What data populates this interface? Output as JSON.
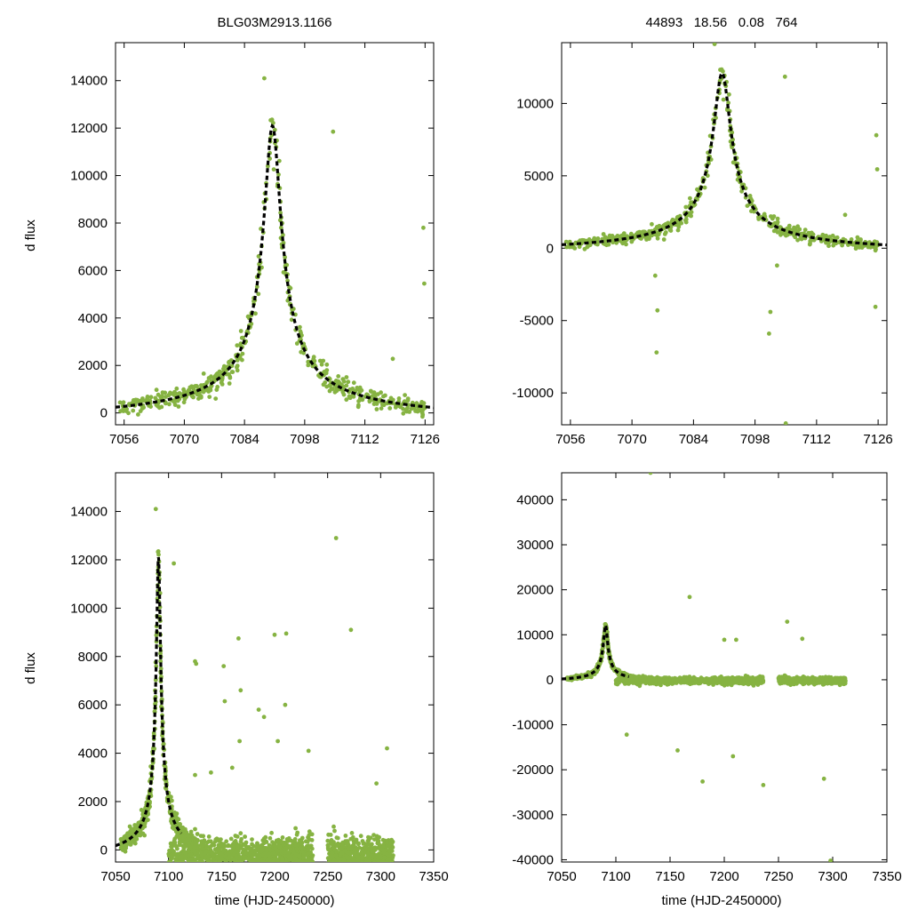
{
  "header": {
    "star_id": "BLG03M2913.1166",
    "params": "44893   18.56   0.08   764"
  },
  "chart_data": [
    {
      "id": "top-left",
      "type": "scatter",
      "title": "",
      "xlabel": "",
      "ylabel": "d flux",
      "xlim": [
        7054,
        7128
      ],
      "ylim": [
        -500,
        15600
      ],
      "xticks": [
        7056,
        7070,
        7084,
        7098,
        7112,
        7126
      ],
      "yticks": [
        0,
        2000,
        4000,
        6000,
        8000,
        10000,
        12000,
        14000
      ],
      "series": [
        {
          "name": "photometry",
          "kind": "points",
          "color": "#86b342"
        },
        {
          "name": "model",
          "kind": "dashed-line",
          "color": "#000000",
          "model": {
            "t0": 7090.5,
            "tE": 7.5,
            "amp": 12500,
            "baseline": -400
          }
        }
      ],
      "outliers": [
        [
          7088.6,
          14100
        ],
        [
          7104.6,
          11850
        ],
        [
          7125.6,
          7800
        ],
        [
          7125.8,
          5450
        ],
        [
          7118.5,
          2280
        ]
      ]
    },
    {
      "id": "top-right",
      "type": "scatter",
      "title": "",
      "xlabel": "",
      "ylabel": "",
      "xlim": [
        7054,
        7128
      ],
      "ylim": [
        -12200,
        14200
      ],
      "xticks": [
        7056,
        7070,
        7084,
        7098,
        7112,
        7126
      ],
      "yticks": [
        -10000,
        -5000,
        0,
        5000,
        10000
      ],
      "series": [
        {
          "name": "photometry",
          "kind": "points",
          "color": "#86b342"
        },
        {
          "name": "model",
          "kind": "dashed-line",
          "color": "#000000",
          "model": {
            "t0": 7090.5,
            "tE": 7.5,
            "amp": 12500,
            "baseline": -400
          }
        }
      ],
      "outliers": [
        [
          7088.8,
          14100
        ],
        [
          7104.8,
          11850
        ],
        [
          7075.6,
          -7200
        ],
        [
          7075.8,
          -4300
        ],
        [
          7075.3,
          -1900
        ],
        [
          7101.5,
          -4400
        ],
        [
          7101.2,
          -5900
        ],
        [
          7103.0,
          -1200
        ],
        [
          7125.6,
          7800
        ],
        [
          7125.8,
          5450
        ],
        [
          7125.4,
          -4050
        ],
        [
          7105.0,
          -12100
        ],
        [
          7118.5,
          2300
        ]
      ]
    },
    {
      "id": "bottom-left",
      "type": "scatter",
      "title": "",
      "xlabel": "time (HJD-2450000)",
      "ylabel": "d flux",
      "xlim": [
        7050,
        7350
      ],
      "ylim": [
        -500,
        15600
      ],
      "xticks": [
        7050,
        7100,
        7150,
        7200,
        7250,
        7300,
        7350
      ],
      "yticks": [
        0,
        2000,
        4000,
        6000,
        8000,
        10000,
        12000,
        14000
      ],
      "series": [
        {
          "name": "photometry",
          "kind": "points",
          "color": "#86b342"
        },
        {
          "name": "model",
          "kind": "dashed-line",
          "color": "#000000",
          "model": {
            "t0": 7090.5,
            "tE": 7.5,
            "amp": 12500,
            "baseline": -400
          }
        }
      ],
      "outliers": [
        [
          7088,
          14100
        ],
        [
          7105,
          11850
        ],
        [
          7125,
          7800
        ],
        [
          7126,
          7700
        ],
        [
          7258,
          12900
        ],
        [
          7272,
          9100
        ],
        [
          7200,
          8900
        ],
        [
          7211,
          8950
        ],
        [
          7166,
          8750
        ],
        [
          7152,
          7600
        ],
        [
          7168,
          6600
        ],
        [
          7153,
          6150
        ],
        [
          7210,
          6000
        ],
        [
          7185,
          5800
        ],
        [
          7190,
          5500
        ],
        [
          7167,
          4500
        ],
        [
          7203,
          4500
        ],
        [
          7232,
          4100
        ],
        [
          7306,
          4200
        ],
        [
          7296,
          2750
        ],
        [
          7160,
          3400
        ],
        [
          7140,
          3200
        ],
        [
          7125,
          3100
        ]
      ]
    },
    {
      "id": "bottom-right",
      "type": "scatter",
      "title": "",
      "xlabel": "time (HJD-2450000)",
      "ylabel": "",
      "xlim": [
        7050,
        7350
      ],
      "ylim": [
        -40500,
        46000
      ],
      "xticks": [
        7050,
        7100,
        7150,
        7200,
        7250,
        7300,
        7350
      ],
      "yticks": [
        -40000,
        -30000,
        -20000,
        -10000,
        0,
        10000,
        20000,
        30000,
        40000
      ],
      "series": [
        {
          "name": "photometry",
          "kind": "points",
          "color": "#86b342"
        },
        {
          "name": "model",
          "kind": "dashed-line",
          "color": "#000000",
          "model": {
            "t0": 7090.5,
            "tE": 7.5,
            "amp": 12500,
            "baseline": -400
          }
        }
      ],
      "outliers": [
        [
          7132,
          46000
        ],
        [
          7168,
          18400
        ],
        [
          7110,
          -12200
        ],
        [
          7157,
          -15700
        ],
        [
          7180,
          -22600
        ],
        [
          7208,
          -17000
        ],
        [
          7236,
          -23400
        ],
        [
          7292,
          -22000
        ],
        [
          7298,
          -40200
        ],
        [
          7258,
          12900
        ],
        [
          7272,
          9100
        ],
        [
          7200,
          8900
        ],
        [
          7211,
          8900
        ]
      ]
    }
  ]
}
